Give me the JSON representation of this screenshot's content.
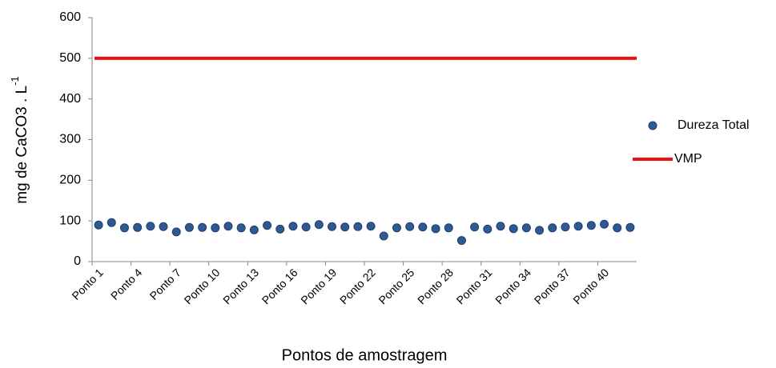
{
  "chart_data": {
    "type": "scatter",
    "ylabel": "mg de CaCO3 . L",
    "ylabel_sup": "-1",
    "xlabel": "Pontos de amostragem",
    "categories": [
      "Ponto 1",
      null,
      null,
      "Ponto 4",
      null,
      null,
      "Ponto 7",
      null,
      null,
      "Ponto 10",
      null,
      null,
      "Ponto 13",
      null,
      null,
      "Ponto 16",
      null,
      null,
      "Ponto 19",
      null,
      null,
      "Ponto 22",
      null,
      null,
      "Ponto 25",
      null,
      null,
      "Ponto 28",
      null,
      null,
      "Ponto 31",
      null,
      null,
      "Ponto 34",
      null,
      null,
      "Ponto 37",
      null,
      null,
      "Ponto 40",
      null,
      null
    ],
    "series": [
      {
        "name": "Dureza Total",
        "type": "scatter",
        "color": "#2e5a93",
        "values": [
          90,
          96,
          83,
          84,
          87,
          86,
          73,
          84,
          84,
          83,
          87,
          83,
          78,
          89,
          80,
          87,
          85,
          91,
          86,
          85,
          86,
          87,
          63,
          83,
          86,
          85,
          81,
          83,
          52,
          85,
          80,
          87,
          81,
          83,
          77,
          83,
          85,
          87,
          89,
          92,
          83,
          84
        ]
      },
      {
        "name": "VMP",
        "type": "line",
        "color": "#ee1111",
        "values": [
          500,
          500,
          500,
          500,
          500,
          500,
          500,
          500,
          500,
          500,
          500,
          500,
          500,
          500,
          500,
          500,
          500,
          500,
          500,
          500,
          500,
          500,
          500,
          500,
          500,
          500,
          500,
          500,
          500,
          500,
          500,
          500,
          500,
          500,
          500,
          500,
          500,
          500,
          500,
          500,
          500,
          500
        ]
      }
    ],
    "ylim": [
      0,
      600
    ],
    "yticks": [
      0,
      100,
      200,
      300,
      400,
      500,
      600
    ],
    "legend": "right"
  }
}
